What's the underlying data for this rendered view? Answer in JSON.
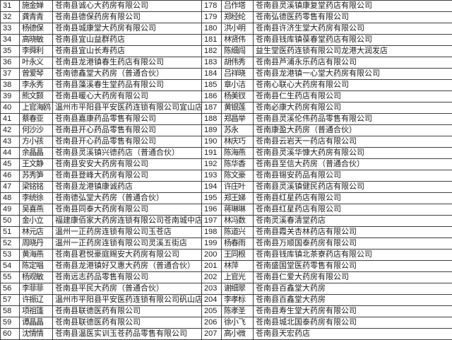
{
  "colors": {
    "background": "#ffffff",
    "grid_border": "#3f3f3f",
    "text": "#1c1c1c"
  },
  "table": {
    "rows": [
      {
        "left_no": "31",
        "left_name": "施金婵",
        "left_company": "苍南县诚心大药房有限公司",
        "right_no": "178",
        "right_name": "吕作塔",
        "right_company": "苍南县灵溪镇康复堂药店有限公司"
      },
      {
        "left_no": "32",
        "left_name": "龚青青",
        "left_company": "苍南县德保药房有限公司",
        "right_no": "179",
        "right_name": "郑经纶",
        "right_company": "苍南弘德医药零售有限公司"
      },
      {
        "left_no": "33",
        "left_name": "杨德保",
        "left_company": "苍南县城康堂大药房有限公司",
        "right_no": "180",
        "right_name": "洪小明",
        "right_company": "苍南县许济生堂大药房有限公司"
      },
      {
        "left_no": "34",
        "left_name": "高晓敏",
        "left_company": "苍南县宜山益群药店",
        "right_no": "181",
        "right_name": "林贤伟",
        "right_company": "苍南县钱库镇葆春堂药店有限公司"
      },
      {
        "left_no": "35",
        "left_name": "李舜利",
        "left_company": "苍南县宜山长寿药店",
        "right_no": "182",
        "right_name": "陈细闯",
        "right_company": "益生堂医药连锁有限公司龙港大润发店"
      },
      {
        "left_no": "36",
        "left_name": "叶永义",
        "left_company": "苍南县龙港镇春生药店有限公司",
        "right_no": "183",
        "right_name": "胡伟秀",
        "right_company": "苍南县芦浦永乐药店有限公司"
      },
      {
        "left_no": "37",
        "left_name": "曾爱琴",
        "left_company": "苍南德鑫堂大药房（普通合伙）",
        "right_no": "184",
        "right_name": "吕祥晓",
        "right_company": "苍南县龙港镇一心堂大药房有限公司"
      },
      {
        "left_no": "38",
        "left_name": "李永秀",
        "left_company": "苍南县藻溪春生堂药品有限公司",
        "right_no": "185",
        "right_name": "章小洁",
        "right_company": "苍南心联心大药房有限公司"
      },
      {
        "left_no": "39",
        "left_name": "熊文颢",
        "left_company": "苍南县暖心大药房有限公司",
        "right_no": "186",
        "right_name": "杨美钗",
        "right_company": "苍南县仁生药店有限公司"
      },
      {
        "left_no": "40",
        "left_name": "上官海鸥",
        "left_company": "温州市平阳县平安医药连锁有限公司宜山店",
        "right_no": "187",
        "right_name": "黄银莲",
        "right_company": "苍南必康大药房有限公司"
      },
      {
        "left_no": "41",
        "left_name": "蔡春亚",
        "left_company": "苍南县嘉康药品零售有限公司",
        "right_no": "188",
        "right_name": "郑昌举",
        "right_company": "苍南县灵溪伦伟药品零售有限公司"
      },
      {
        "left_no": "42",
        "left_name": "何沙沙",
        "left_company": "苍南县开心药品零售有限公司",
        "right_no": "189",
        "right_name": "苏永",
        "right_company": "苍南康盈大药房（普通合伙）"
      },
      {
        "left_no": "43",
        "left_name": "方小孩",
        "left_company": "苍南县开心药品零售有限公司",
        "right_no": "190",
        "right_name": "林庆巧",
        "right_company": "苍南县云岩天一药店有限公司"
      },
      {
        "left_no": "44",
        "left_name": "余晶晶",
        "left_company": "苍南县灵溪镇兴德药店（普通合伙）",
        "right_no": "191",
        "right_name": "陈海燕",
        "right_company": "苍南县灵溪华慷大药房有限公司"
      },
      {
        "left_no": "45",
        "left_name": "王文静",
        "left_company": "苍南县安安大药房有限公司",
        "right_no": "192",
        "right_name": "陈华香",
        "right_company": "苍南县至信大药房（普通合伙）"
      },
      {
        "left_no": "46",
        "left_name": "苏秀笋",
        "left_company": "苍南县登峰大药房有限公司",
        "right_no": "193",
        "right_name": "陈文豪",
        "right_company": "苍南县锡安药品有限公司"
      },
      {
        "left_no": "47",
        "left_name": "梁铭铭",
        "left_company": "苍南县龙港镇康诚药店",
        "right_no": "194",
        "right_name": "许庄叶",
        "right_company": "苍南县灵溪镇健民药店有限公司"
      },
      {
        "left_no": "48",
        "left_name": "李统徐",
        "left_company": "苍南德弘堂大药房（普通合伙）",
        "right_no": "195",
        "right_name": "郑王娣",
        "right_company": "苍南县红星药店有限公司"
      },
      {
        "left_no": "49",
        "left_name": "吴喜燕",
        "left_company": "苍南县同泰大药房有限公司",
        "right_no": "196",
        "right_name": "蒋琳琳",
        "right_company": "苍南县红星药店有限公司"
      },
      {
        "left_no": "50",
        "left_name": "金小立",
        "left_company": "福建康佰家大药房连锁有限公司苍南城中店",
        "right_no": "197",
        "right_name": "林冯数",
        "right_company": "苍南灵溪春清堂药店"
      },
      {
        "left_no": "51",
        "left_name": "林元店",
        "left_company": "温州一正药房连锁有限公司玉苍店",
        "right_no": "198",
        "right_name": "陈道兴",
        "right_company": "苍南县霞关杏林药店有限公司"
      },
      {
        "left_no": "52",
        "left_name": "周晓丹",
        "left_company": "温州一正药房连锁有限公司灵溪五街店",
        "right_no": "199",
        "right_name": "杨春雨",
        "right_company": "苍南县万顺国泰药房有限公司"
      },
      {
        "left_no": "53",
        "left_name": "黄海燕",
        "left_company": "苍南县君悦豪庭赐安大药房有限公司",
        "right_no": "200",
        "right_name": "王同根",
        "right_company": "苍南县钱库镇北茶寮药店有限公司"
      },
      {
        "left_no": "54",
        "left_name": "陈定唱",
        "left_company": "苍南县龙港镇好又惠大药房（普通合伙）",
        "right_no": "201",
        "right_name": "林萍",
        "right_company": "苍南盛国堂医药零售有限公司"
      },
      {
        "left_no": "55",
        "left_name": "杨观敏",
        "left_company": "苍南远志药品零售有限公司",
        "right_no": "202",
        "right_name": "上官光",
        "right_company": "苍南县仁爱大药房有限公司"
      },
      {
        "left_no": "56",
        "left_name": "李菲菲",
        "left_company": "苍南县平民大药房（普通合伙）",
        "right_no": "203",
        "right_name": "谢细翠",
        "right_company": "苍南县百鑫堂大药房"
      },
      {
        "left_no": "57",
        "left_name": "许振辽",
        "left_company": "温州市平阳县平安医药连锁有限公司矾山店",
        "right_no": "204",
        "right_name": "李孝标",
        "right_company": "苍南县百鑫堂大药房"
      },
      {
        "left_no": "58",
        "left_name": "项祖篷",
        "left_company": "苍南县联德医药有限公司",
        "right_no": "205",
        "right_name": "陈孝圣",
        "right_company": "苍南县寿生堂大药房有限公司"
      },
      {
        "left_no": "59",
        "left_name": "谭晶晶",
        "left_company": "苍南县联德医药有限公司",
        "right_no": "206",
        "right_name": "徐小飞",
        "right_company": "苍南县城北国泰药房有限公司"
      },
      {
        "left_no": "60",
        "left_name": "沈情情",
        "left_company": "苍南县温医实训玉苍药品零售有限公司",
        "right_no": "207",
        "right_name": "高小微",
        "right_company": "苍南县天宏药店"
      }
    ]
  }
}
